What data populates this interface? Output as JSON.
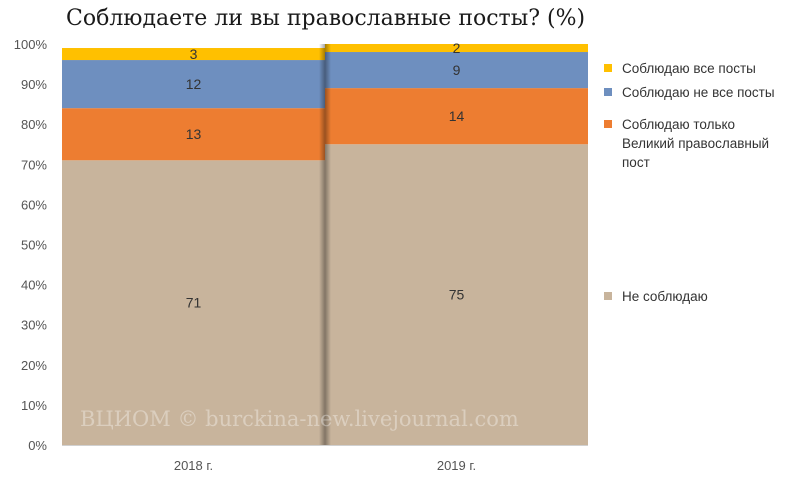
{
  "title": "Соблюдаете ли вы православные посты? (%)",
  "watermark": "ВЦИОМ © burckina-new.livejournal.com",
  "chart_data": {
    "type": "bar",
    "stacked": true,
    "normalized": true,
    "title": "Соблюдаете ли вы православные посты? (%)",
    "categories": [
      "2018 г.",
      "2019 г."
    ],
    "y_ticks": [
      "0%",
      "10%",
      "20%",
      "30%",
      "40%",
      "50%",
      "60%",
      "70%",
      "80%",
      "90%",
      "100%"
    ],
    "ylim": [
      0,
      100
    ],
    "grid": false,
    "legend_position": "right",
    "series": [
      {
        "name": "Не соблюдаю",
        "values": [
          71,
          75
        ],
        "color": "#c8b49c"
      },
      {
        "name": "Соблюдаю только Великий православный пост",
        "label_lines": [
          "Соблюдаю только",
          "Великий православный",
          "пост"
        ],
        "values": [
          13,
          14
        ],
        "color": "#ed7d31"
      },
      {
        "name": "Соблюдаю не все посты",
        "values": [
          12,
          9
        ],
        "color": "#6e8fbf"
      },
      {
        "name": "Соблюдаю все посты",
        "values": [
          3,
          2
        ],
        "color": "#ffc000"
      }
    ]
  }
}
